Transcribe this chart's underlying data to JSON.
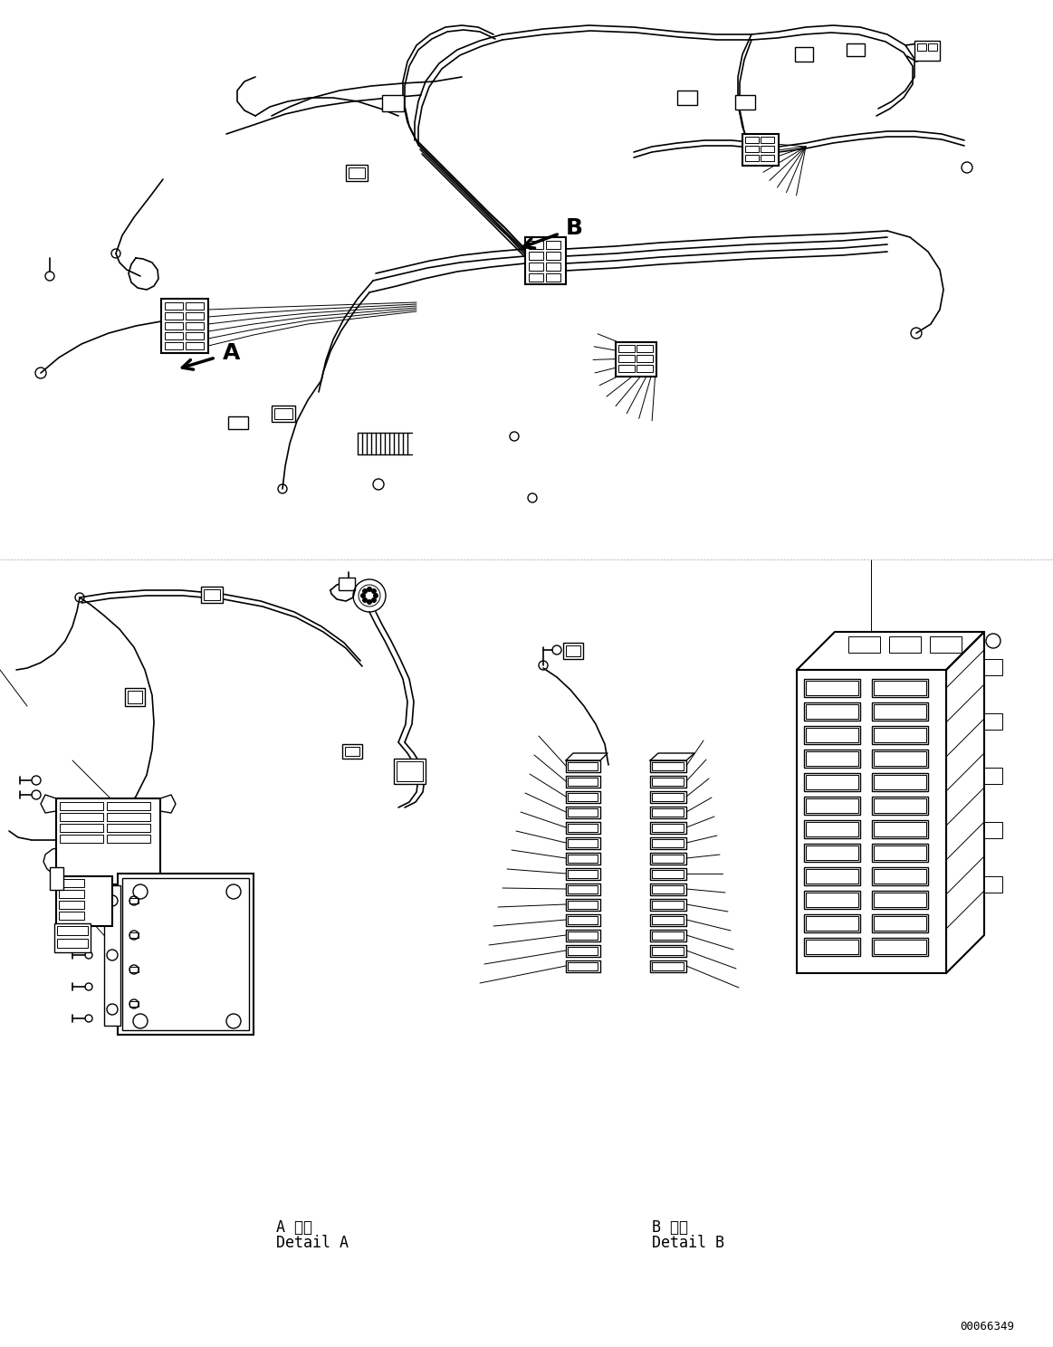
{
  "bg_color": "#ffffff",
  "line_color": "#000000",
  "fig_width": 11.63,
  "fig_height": 14.88,
  "dpi": 100,
  "part_number": "00066349",
  "label_A": "A",
  "label_B": "B",
  "detail_a_label1": "A 詳細",
  "detail_a_label2": "Detail A",
  "detail_b_label1": "B 詳細",
  "detail_b_label2": "Detail B"
}
